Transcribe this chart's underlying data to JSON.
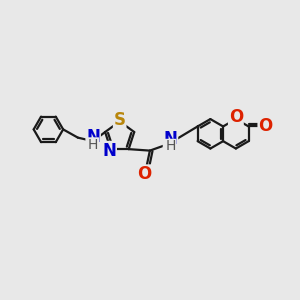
{
  "bg_color": "#e8e8e8",
  "bond_color": "#1a1a1a",
  "bond_width": 1.6,
  "atoms": {
    "S": {
      "color": "#b8860b",
      "fontsize": 12,
      "fontweight": "bold"
    },
    "N": {
      "color": "#0000cc",
      "fontsize": 12,
      "fontweight": "bold"
    },
    "O": {
      "color": "#dd2200",
      "fontsize": 12,
      "fontweight": "bold"
    },
    "H": {
      "color": "#555555",
      "fontsize": 10,
      "fontweight": "normal"
    }
  },
  "figsize": [
    3.0,
    3.0
  ],
  "dpi": 100
}
